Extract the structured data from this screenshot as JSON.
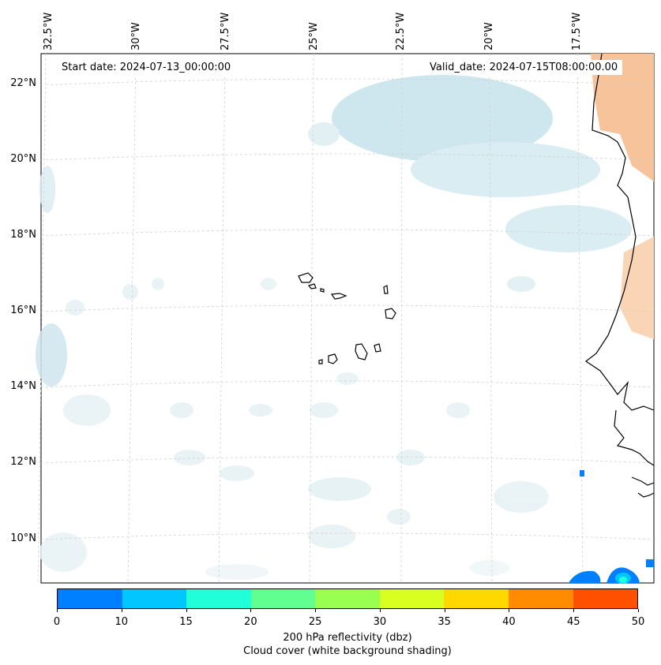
{
  "map": {
    "start_date": "Start date: 2024-07-13_00:00:00",
    "valid_date": "Valid_date: 2024-07-15T08:00:00.00",
    "longitude_labels": [
      "32.5°W",
      "30°W",
      "27.5°W",
      "25°W",
      "22.5°W",
      "20°W",
      "17.5°W"
    ],
    "latitude_labels": [
      "22°N",
      "20°N",
      "18°N",
      "16°N",
      "14°N",
      "12°N",
      "10°N"
    ]
  },
  "colorbar": {
    "colors": [
      "#0080ff",
      "#00c8ff",
      "#20ffd8",
      "#60ff90",
      "#98ff50",
      "#d8ff20",
      "#ffd800",
      "#ff8c00",
      "#ff5000"
    ],
    "ticks": [
      "0",
      "10",
      "15",
      "20",
      "25",
      "30",
      "35",
      "40",
      "45",
      "50"
    ],
    "label_line1": "200 hPa reflectivity (dbz)",
    "label_line2": "Cloud cover (white background shading)"
  },
  "colors": {
    "cloud": "#bfe0ea",
    "dust": "#f6c9a3",
    "coast": "#000000",
    "grid": "#d0d0d0"
  }
}
